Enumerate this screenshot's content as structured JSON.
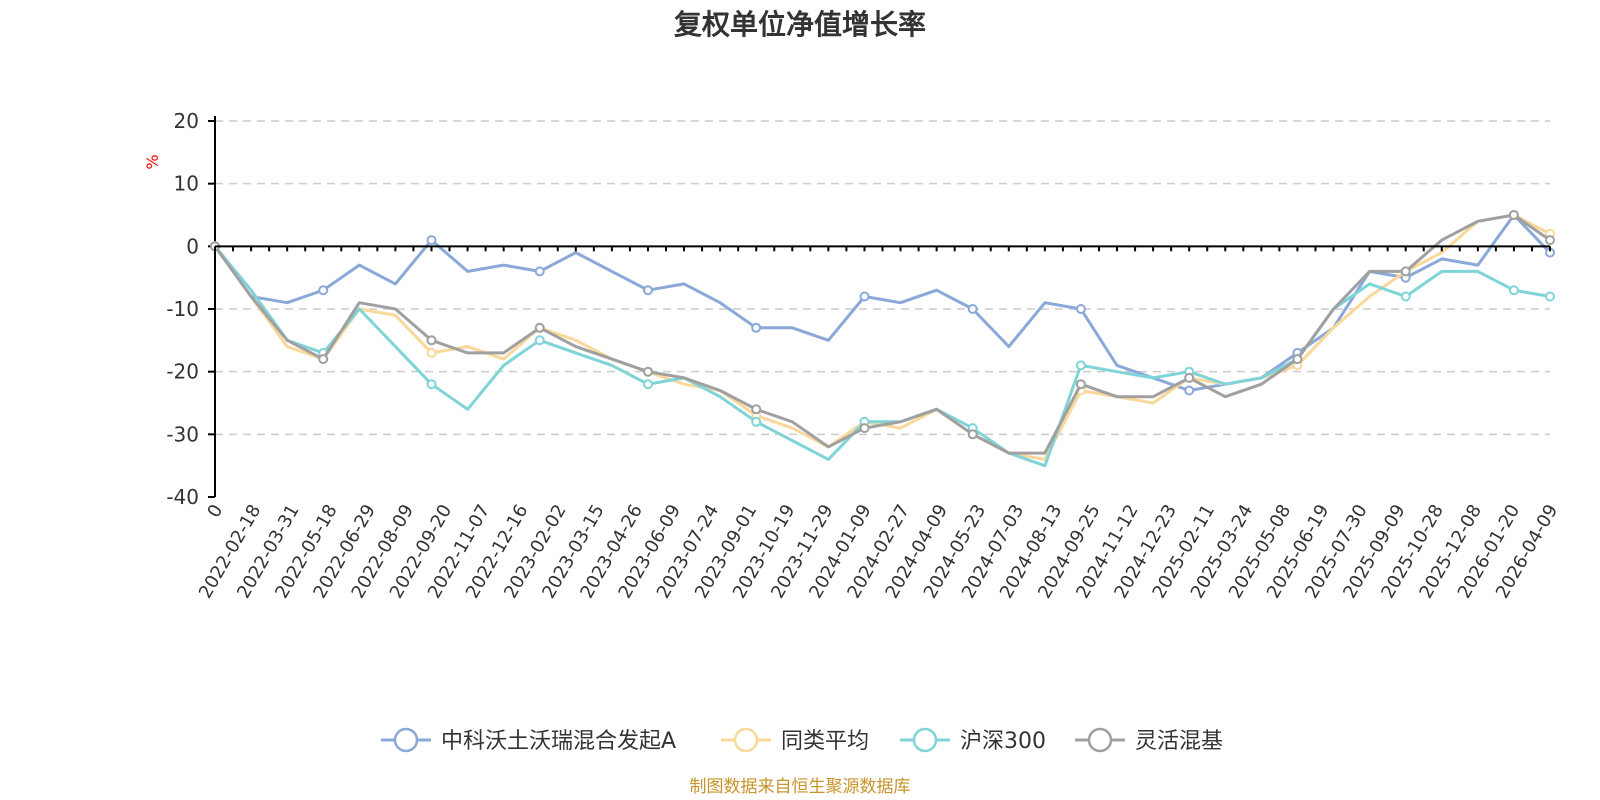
{
  "chart_data": {
    "type": "line",
    "title": "复权单位净值增长率",
    "ylabel": "%",
    "ylim": [
      -40,
      20
    ],
    "yticks": [
      20,
      10,
      0,
      -10,
      -20,
      -30,
      -40
    ],
    "xlabels": [
      "0",
      "2022-02-18",
      "2022-03-31",
      "2022-05-18",
      "2022-06-29",
      "2022-08-09",
      "2022-09-20",
      "2022-11-07",
      "2022-12-16",
      "2023-02-02",
      "2023-03-15",
      "2023-04-26",
      "2023-06-09",
      "2023-07-24",
      "2023-09-01",
      "2023-10-19",
      "2023-11-29",
      "2024-01-09",
      "2024-02-27",
      "2024-04-09",
      "2024-05-23",
      "2024-07-03",
      "2024-08-13",
      "2024-09-25",
      "2024-11-12",
      "2024-12-23",
      "2025-02-11",
      "2025-03-24",
      "2025-05-08",
      "2025-06-19",
      "2025-07-30",
      "2025-09-09",
      "2025-10-28",
      "2025-12-08",
      "2026-01-20",
      "2026-04-09"
    ],
    "grid": true,
    "legend_position": "bottom",
    "series": [
      {
        "name": "中科沃土沃瑞混合发起A",
        "color": "#8aa8d8",
        "values": [
          0,
          -8,
          -9,
          -7,
          -3,
          -6,
          1,
          -4,
          -3,
          -4,
          -1,
          -4,
          -7,
          -6,
          -9,
          -13,
          -13,
          -15,
          -8,
          -9,
          -7,
          -10,
          -16,
          -9,
          -10,
          -19,
          -21,
          -23,
          -22,
          -21,
          -17,
          -13,
          -4,
          -5,
          -2,
          -3,
          5,
          -1
        ]
      },
      {
        "name": "同类平均",
        "color": "#fad89a",
        "values": [
          0,
          -8,
          -16,
          -18,
          -10,
          -11,
          -17,
          -16,
          -18,
          -13,
          -15,
          -18,
          -20,
          -22,
          -23,
          -27,
          -29,
          -32,
          -28,
          -29,
          -26,
          -30,
          -33,
          -34,
          -23,
          -24,
          -25,
          -21,
          -22,
          -21,
          -19,
          -13,
          -8,
          -4,
          -1,
          4,
          5,
          2
        ]
      },
      {
        "name": "沪深300",
        "color": "#7fd4d8",
        "values": [
          0,
          -7,
          -15,
          -17,
          -10,
          -16,
          -22,
          -26,
          -19,
          -15,
          -17,
          -19,
          -22,
          -21,
          -24,
          -28,
          -31,
          -34,
          -28,
          -28,
          -26,
          -29,
          -33,
          -35,
          -19,
          -20,
          -21,
          -20,
          -22,
          -21,
          -18,
          -10,
          -6,
          -8,
          -4,
          -4,
          -7,
          -8
        ]
      },
      {
        "name": "灵活混基",
        "color": "#a0a0a0",
        "values": [
          0,
          -8,
          -15,
          -18,
          -9,
          -10,
          -15,
          -17,
          -17,
          -13,
          -16,
          -18,
          -20,
          -21,
          -23,
          -26,
          -28,
          -32,
          -29,
          -28,
          -26,
          -30,
          -33,
          -33,
          -22,
          -24,
          -24,
          -21,
          -24,
          -22,
          -18,
          -10,
          -4,
          -4,
          1,
          4,
          5,
          1
        ]
      }
    ]
  },
  "source_note": "制图数据来自恒生聚源数据库"
}
